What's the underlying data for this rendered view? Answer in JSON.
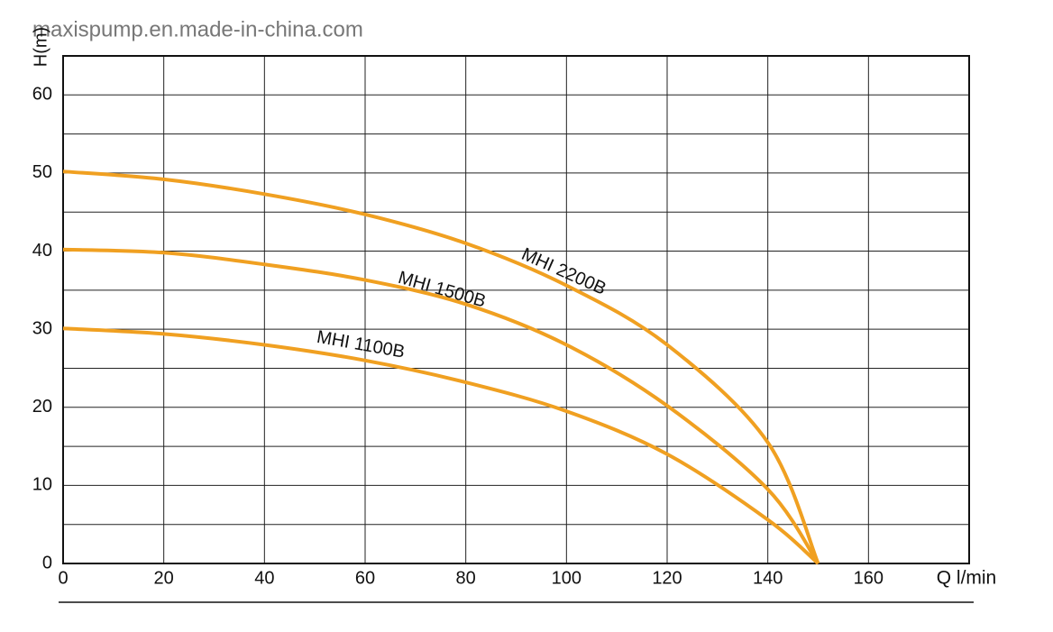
{
  "chart_data": {
    "type": "line",
    "watermark": "maxispump.en.made-in-china.com",
    "y_label": "H(m)",
    "x_label": "Q l/min",
    "x": [
      0,
      20,
      40,
      60,
      80,
      100,
      120,
      140,
      150
    ],
    "series": [
      {
        "name": "MHI 2200B",
        "color": "#f0a021",
        "values": [
          50.2,
          49.2,
          47.3,
          44.7,
          41,
          35.6,
          28,
          15.5,
          0
        ]
      },
      {
        "name": "MHI 1500B",
        "color": "#f0a021",
        "values": [
          40.2,
          39.8,
          38.3,
          36.3,
          33.2,
          28,
          20.2,
          9.5,
          0
        ]
      },
      {
        "name": "MHI 1100B",
        "color": "#f0a021",
        "values": [
          30.1,
          29.4,
          28,
          26,
          23.2,
          19.5,
          14,
          5.6,
          0
        ]
      }
    ],
    "xlim": [
      0,
      180
    ],
    "ylim": [
      0,
      65
    ],
    "xticks": [
      0,
      20,
      40,
      60,
      80,
      100,
      120,
      140,
      160
    ],
    "yticks": [
      0,
      10,
      20,
      30,
      40,
      50,
      60
    ],
    "minor_yticks": [
      5,
      15,
      25,
      35,
      45,
      55
    ],
    "grid": true
  }
}
